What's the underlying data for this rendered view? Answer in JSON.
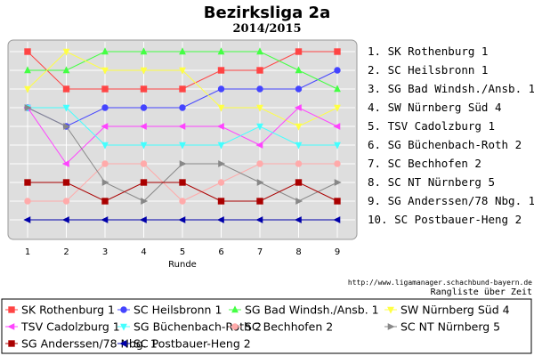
{
  "chart_data": {
    "type": "line",
    "title": "Bezirksliga 2a",
    "subtitle": "2014/2015",
    "xlabel": "Runde",
    "x": [
      1,
      2,
      3,
      4,
      5,
      6,
      7,
      8,
      9
    ],
    "ylim": [
      10,
      1
    ],
    "grid": true,
    "legend_position": "bottom",
    "rank_labels": [
      "1.  SK Rothenburg 1",
      "2.  SC Heilsbronn 1",
      "3.  SG Bad Windsh./Ansb. 1",
      "4.  SW Nürnberg Süd 4",
      "5.  TSV Cadolzburg 1",
      "6.  SG Büchenbach-Roth 2",
      "7.  SC Bechhofen 2",
      "8.  SC NT Nürnberg 5",
      "9.  SG Anderssen/78 Nbg. 1",
      "10. SC Postbauer-Heng 2"
    ],
    "credit": "http://www.ligamanager.schachbund-bayern.de",
    "caption": "Rangliste über Zeit",
    "series": [
      {
        "name": "SK Rothenburg 1",
        "color": "#ff4444",
        "marker": "square",
        "values": [
          1,
          3,
          3,
          3,
          3,
          2,
          2,
          1,
          1
        ]
      },
      {
        "name": "SC Heilsbronn 1",
        "color": "#4444ff",
        "marker": "circle",
        "values": [
          4,
          5,
          4,
          4,
          4,
          3,
          3,
          3,
          2
        ]
      },
      {
        "name": "SG Bad Windsh./Ansb. 1",
        "color": "#44ff44",
        "marker": "triangle",
        "values": [
          2,
          2,
          1,
          1,
          1,
          1,
          1,
          2,
          3
        ]
      },
      {
        "name": "SW Nürnberg Süd 4",
        "color": "#ffff44",
        "marker": "triangle-down",
        "values": [
          3,
          1,
          2,
          2,
          2,
          4,
          4,
          5,
          4
        ]
      },
      {
        "name": "TSV Cadolzburg 1",
        "color": "#ff44ff",
        "marker": "triangle-left",
        "values": [
          4,
          7,
          5,
          5,
          5,
          5,
          6,
          4,
          5
        ]
      },
      {
        "name": "SG Büchenbach-Roth 2",
        "color": "#44ffff",
        "marker": "triangle-down",
        "values": [
          4,
          4,
          6,
          6,
          6,
          6,
          5,
          6,
          6
        ]
      },
      {
        "name": "SC Bechhofen 2",
        "color": "#ffaaaa",
        "marker": "circle",
        "values": [
          9,
          9,
          7,
          7,
          9,
          8,
          7,
          7,
          7
        ]
      },
      {
        "name": "SC NT Nürnberg 5",
        "color": "#888888",
        "marker": "triangle-right",
        "values": [
          4,
          5,
          8,
          9,
          7,
          7,
          8,
          9,
          8
        ]
      },
      {
        "name": "SG Anderssen/78 Nbg. 1",
        "color": "#aa0000",
        "marker": "square",
        "values": [
          8,
          8,
          9,
          8,
          8,
          9,
          9,
          8,
          9
        ]
      },
      {
        "name": "SC Postbauer-Heng 2",
        "color": "#0000aa",
        "marker": "triangle-left",
        "values": [
          10,
          10,
          10,
          10,
          10,
          10,
          10,
          10,
          10
        ]
      }
    ]
  }
}
